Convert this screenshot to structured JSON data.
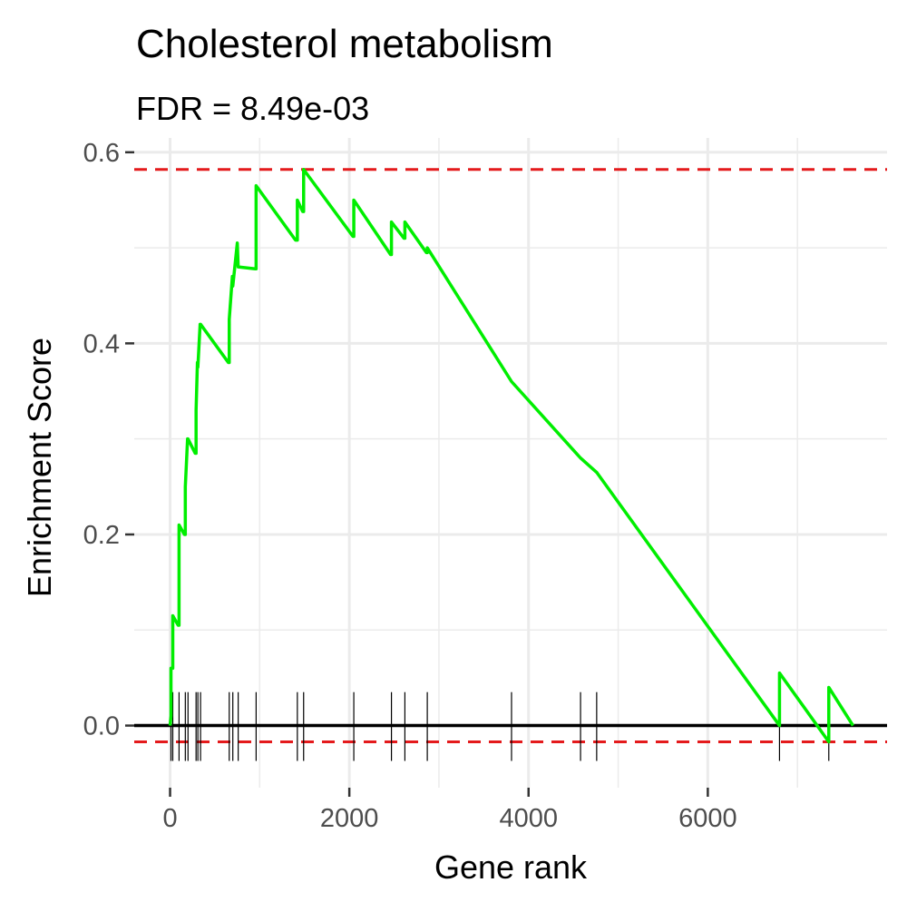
{
  "chart_data": {
    "type": "line",
    "title": "Cholesterol metabolism",
    "subtitle": "FDR = 8.49e-03",
    "xlabel": "Gene rank",
    "ylabel": "Enrichment Score",
    "xlim": [
      -400,
      8000
    ],
    "ylim": [
      -0.065,
      0.615
    ],
    "x_ticks": [
      0,
      2000,
      4000,
      6000
    ],
    "x_tick_labels": [
      "0",
      "2000",
      "4000",
      "6000"
    ],
    "y_ticks": [
      0.0,
      0.2,
      0.4,
      0.6
    ],
    "y_tick_labels": [
      "0.0",
      "0.2",
      "0.4",
      "0.6"
    ],
    "grid": true,
    "colors": {
      "running_score": "#00ee00",
      "threshold_lines": "#e41a1c",
      "hits": "#000000",
      "grid": "#ebebeb",
      "zero_line": "#000000"
    },
    "threshold_max": 0.582,
    "threshold_min": -0.017,
    "hits": [
      10,
      30,
      100,
      170,
      200,
      290,
      310,
      340,
      660,
      700,
      760,
      960,
      1420,
      1490,
      2050,
      2470,
      2620,
      2870,
      3810,
      4580,
      4760,
      6800,
      7350
    ],
    "running_score": {
      "x": [
        0,
        10,
        10,
        30,
        30,
        90,
        100,
        100,
        160,
        170,
        170,
        195,
        200,
        200,
        280,
        290,
        290,
        305,
        310,
        310,
        335,
        340,
        340,
        650,
        660,
        660,
        695,
        700,
        700,
        750,
        760,
        760,
        950,
        960,
        960,
        1400,
        1420,
        1420,
        1480,
        1490,
        1490,
        2040,
        2050,
        2050,
        2460,
        2470,
        2470,
        2610,
        2620,
        2620,
        2860,
        2870,
        2870,
        3810,
        3810,
        4580,
        4580,
        4760,
        4760,
        6800,
        6800,
        7350,
        7350,
        7620
      ],
      "y": [
        0.0,
        0.01,
        0.06,
        0.06,
        0.115,
        0.105,
        0.105,
        0.21,
        0.2,
        0.2,
        0.25,
        0.3,
        0.3,
        0.3,
        0.285,
        0.285,
        0.33,
        0.38,
        0.375,
        0.375,
        0.42,
        0.42,
        0.42,
        0.38,
        0.38,
        0.425,
        0.47,
        0.46,
        0.46,
        0.505,
        0.48,
        0.48,
        0.478,
        0.478,
        0.565,
        0.508,
        0.508,
        0.55,
        0.538,
        0.538,
        0.582,
        0.512,
        0.512,
        0.55,
        0.493,
        0.493,
        0.527,
        0.51,
        0.51,
        0.527,
        0.495,
        0.495,
        0.5,
        0.36,
        0.36,
        0.28,
        0.28,
        0.265,
        0.265,
        0.0,
        0.055,
        -0.017,
        0.04,
        0.0
      ]
    }
  }
}
